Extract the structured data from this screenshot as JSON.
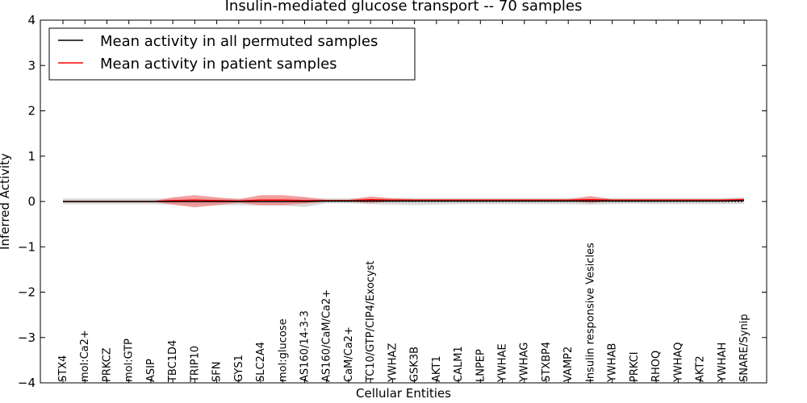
{
  "chart_data": {
    "type": "line",
    "title": "Insulin-mediated glucose transport -- 70 samples",
    "xlabel": "Cellular Entities",
    "ylabel": "Inferred Activity",
    "ylim": [
      -4,
      4
    ],
    "yticks": [
      -4,
      -3,
      -2,
      -1,
      0,
      1,
      2,
      3,
      4
    ],
    "ytick_labels": [
      "−4",
      "−3",
      "−2",
      "−1",
      "0",
      "1",
      "2",
      "3",
      "4"
    ],
    "legend_position": "top-left",
    "categories": [
      "STX4",
      "mol:Ca2+",
      "PRKCZ",
      "mol:GTP",
      "ASIP",
      "TBC1D4",
      "TRIP10",
      "SFN",
      "GYS1",
      "SLC2A4",
      "mol:glucose",
      "AS160/14-3-3",
      "AS160/CaM/Ca2+",
      "CaM/Ca2+",
      "TC10/GTP/CIP4/Exocyst",
      "YWHAZ",
      "GSK3B",
      "AKT1",
      "CALM1",
      "LNPEP",
      "YWHAE",
      "YWHAG",
      "STXBP4",
      "VAMP2",
      "Insulin responsive Vesicles",
      "YWHAB",
      "PRKCI",
      "RHOQ",
      "YWHAQ",
      "AKT2",
      "YWHAH",
      "SNARE/Synip"
    ],
    "series": [
      {
        "name": "Mean activity in all permuted samples",
        "color": "#000000",
        "band_color": "#c8c8c8",
        "values": [
          0.0,
          0.0,
          0.0,
          0.0,
          0.0,
          0.0,
          0.0,
          0.0,
          0.0,
          0.0,
          0.0,
          0.0,
          0.01,
          0.01,
          0.01,
          0.01,
          0.01,
          0.01,
          0.01,
          0.01,
          0.01,
          0.01,
          0.01,
          0.01,
          0.01,
          0.01,
          0.01,
          0.01,
          0.01,
          0.01,
          0.01,
          0.02
        ],
        "lower": [
          -0.06,
          -0.06,
          -0.06,
          -0.06,
          -0.06,
          -0.07,
          -0.08,
          -0.08,
          -0.08,
          -0.09,
          -0.09,
          -0.12,
          -0.04,
          -0.04,
          -0.06,
          -0.07,
          -0.08,
          -0.07,
          -0.06,
          -0.06,
          -0.06,
          -0.06,
          -0.06,
          -0.06,
          -0.07,
          -0.06,
          -0.05,
          -0.06,
          -0.06,
          -0.06,
          -0.06,
          -0.05
        ],
        "upper": [
          0.07,
          0.07,
          0.07,
          0.07,
          0.07,
          0.07,
          0.07,
          0.07,
          0.07,
          0.07,
          0.07,
          0.08,
          0.07,
          0.07,
          0.08,
          0.08,
          0.08,
          0.08,
          0.08,
          0.08,
          0.08,
          0.08,
          0.08,
          0.08,
          0.08,
          0.08,
          0.08,
          0.08,
          0.08,
          0.08,
          0.08,
          0.09
        ]
      },
      {
        "name": "Mean activity in patient samples",
        "color": "#ff0000",
        "band_color": "#f08080",
        "values": [
          0.0,
          0.0,
          0.0,
          0.0,
          0.0,
          0.02,
          0.03,
          0.02,
          0.01,
          0.03,
          0.03,
          0.02,
          0.02,
          0.02,
          0.04,
          0.03,
          0.03,
          0.03,
          0.03,
          0.03,
          0.03,
          0.03,
          0.03,
          0.03,
          0.04,
          0.03,
          0.03,
          0.03,
          0.03,
          0.03,
          0.03,
          0.04
        ],
        "lower": [
          0.0,
          0.0,
          0.0,
          0.0,
          0.0,
          -0.07,
          -0.13,
          -0.08,
          -0.03,
          -0.08,
          -0.08,
          -0.05,
          0.0,
          0.0,
          -0.03,
          0.0,
          0.01,
          0.01,
          0.01,
          0.01,
          0.01,
          0.01,
          0.01,
          0.01,
          -0.03,
          0.01,
          0.01,
          0.01,
          0.01,
          0.01,
          0.01,
          0.02
        ],
        "upper": [
          0.0,
          0.0,
          0.0,
          0.0,
          0.0,
          0.09,
          0.14,
          0.09,
          0.05,
          0.14,
          0.14,
          0.1,
          0.04,
          0.04,
          0.11,
          0.07,
          0.05,
          0.05,
          0.05,
          0.05,
          0.05,
          0.05,
          0.05,
          0.05,
          0.12,
          0.05,
          0.05,
          0.05,
          0.05,
          0.05,
          0.05,
          0.07
        ]
      }
    ]
  }
}
